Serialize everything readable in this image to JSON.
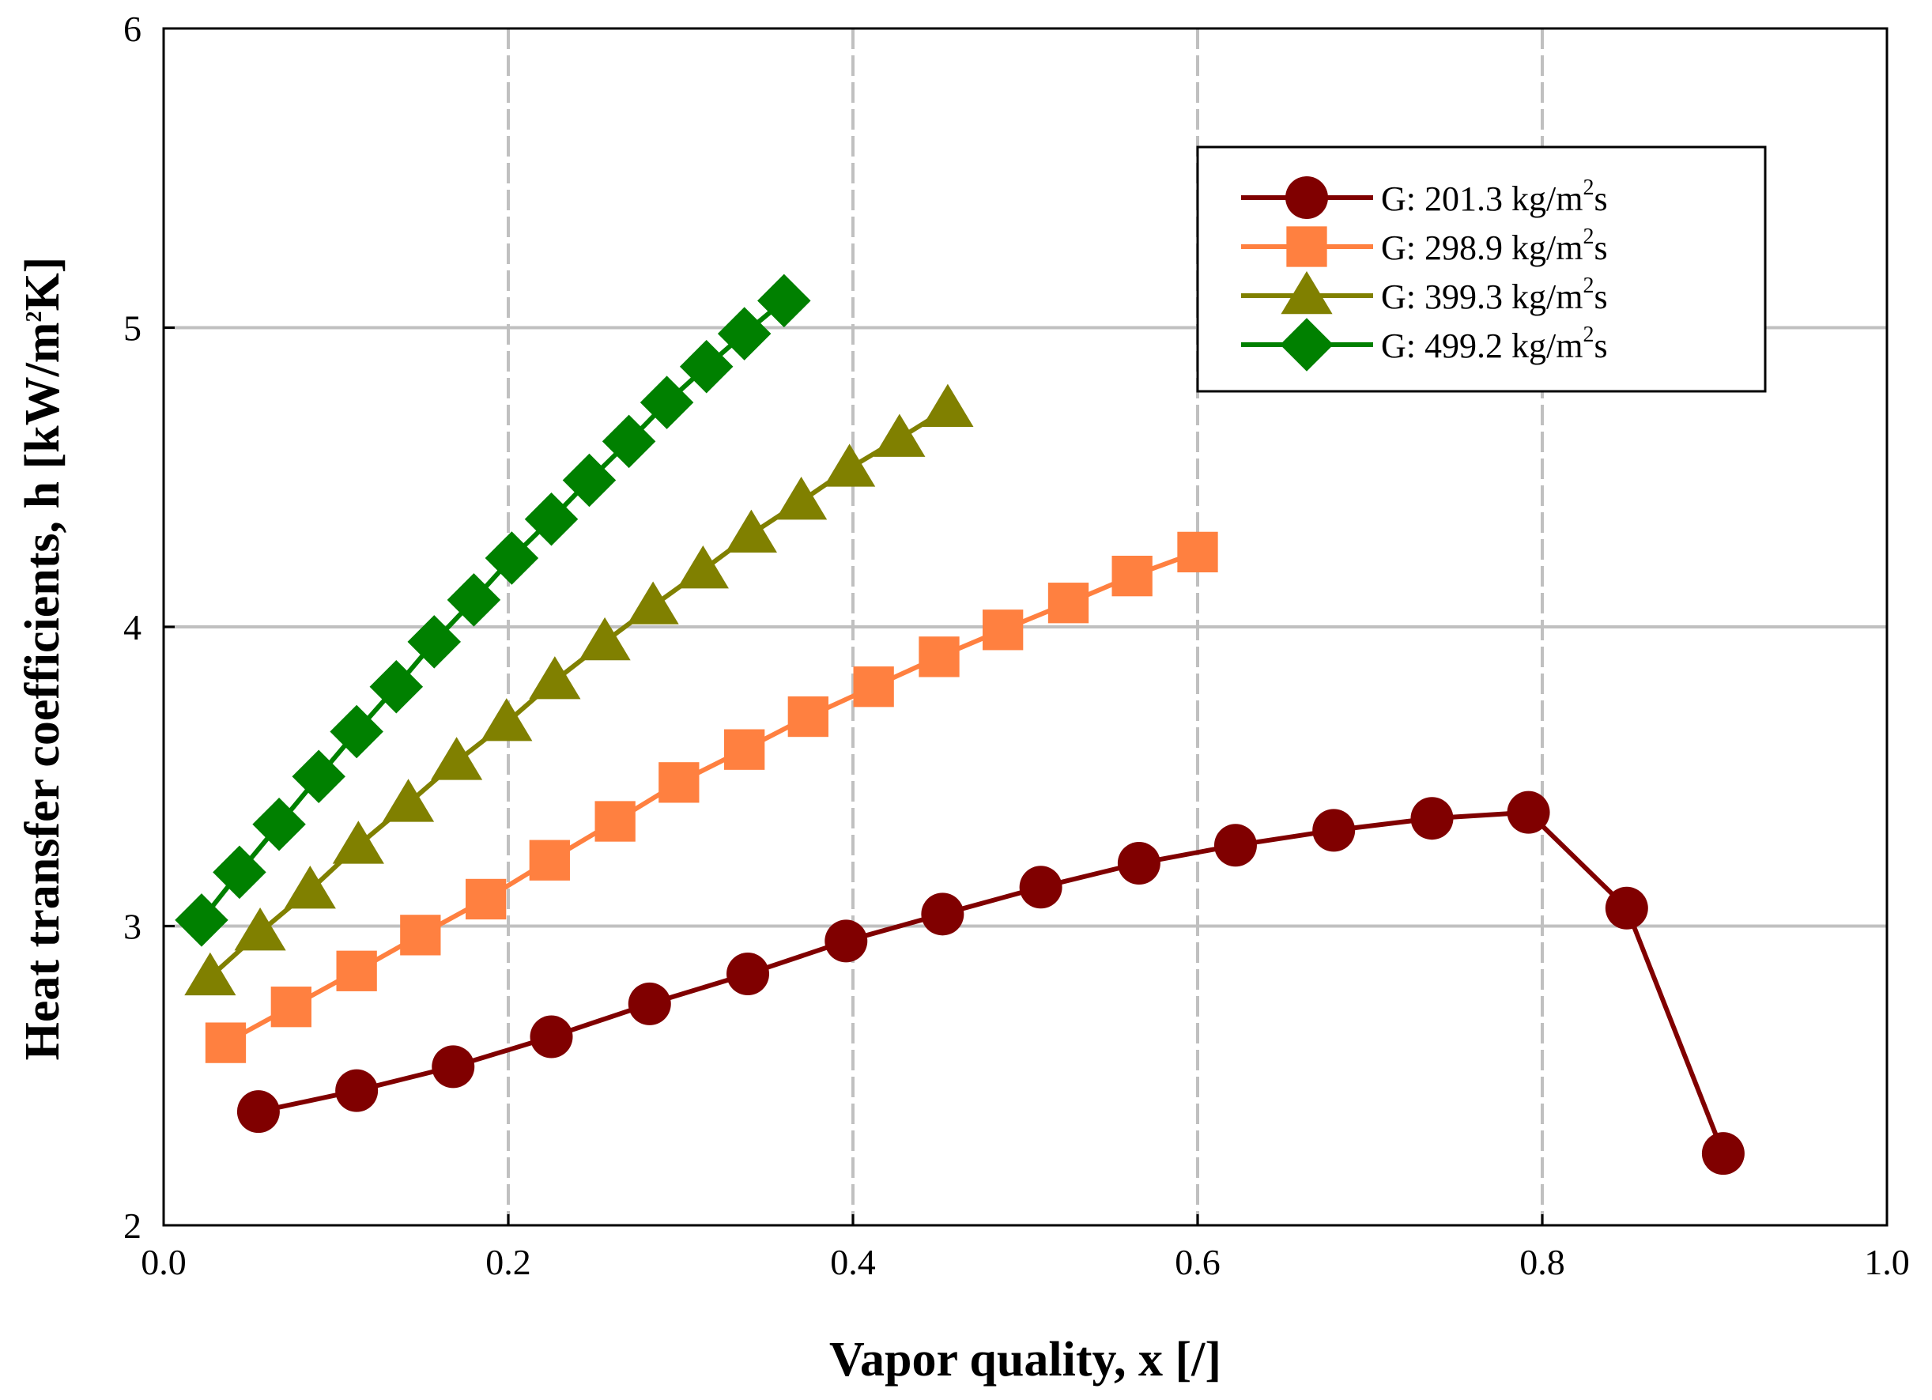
{
  "chart_data": {
    "type": "line",
    "title": "",
    "xlabel": "Vapor quality, x [/]",
    "ylabel": {
      "main": "Heat transfer coefficients, h [kW/m",
      "sup": "2",
      "tail": "K]"
    },
    "xlim": [
      0.0,
      1.0
    ],
    "ylim": [
      2,
      6
    ],
    "x_ticks": [
      "0.0",
      "0.2",
      "0.4",
      "0.6",
      "0.8",
      "1.0"
    ],
    "y_ticks": [
      "2",
      "3",
      "4",
      "5",
      "6"
    ],
    "grid": true,
    "legend_position": "top-right",
    "series": [
      {
        "name": "G: 201.3 kg/m2s",
        "label_main": "G: 201.3 kg/m",
        "label_sup": "2",
        "label_tail": "s",
        "color": "#800000",
        "marker": "circle",
        "x": [
          0.055,
          0.112,
          0.168,
          0.225,
          0.282,
          0.339,
          0.396,
          0.452,
          0.509,
          0.566,
          0.622,
          0.679,
          0.736,
          0.792,
          0.849,
          0.905
        ],
        "y": [
          2.38,
          2.45,
          2.53,
          2.63,
          2.74,
          2.84,
          2.95,
          3.04,
          3.13,
          3.21,
          3.27,
          3.32,
          3.36,
          3.38,
          3.06,
          2.24
        ]
      },
      {
        "name": "G: 298.9 kg/m2s",
        "label_main": "G: 298.9 kg/m",
        "label_sup": "2",
        "label_tail": "s",
        "color": "#FF8040",
        "marker": "square",
        "x": [
          0.036,
          0.074,
          0.112,
          0.149,
          0.187,
          0.224,
          0.262,
          0.299,
          0.337,
          0.374,
          0.412,
          0.45,
          0.487,
          0.525,
          0.562,
          0.6
        ],
        "y": [
          2.61,
          2.73,
          2.85,
          2.97,
          3.09,
          3.22,
          3.35,
          3.48,
          3.59,
          3.7,
          3.8,
          3.9,
          3.99,
          4.08,
          4.17,
          4.25
        ]
      },
      {
        "name": "G: 399.3 kg/m2s",
        "label_main": "G: 399.3 kg/m",
        "label_sup": "2",
        "label_tail": "s",
        "color": "#808000",
        "marker": "triangle",
        "x": [
          0.027,
          0.056,
          0.085,
          0.113,
          0.142,
          0.17,
          0.199,
          0.227,
          0.256,
          0.284,
          0.313,
          0.341,
          0.37,
          0.398,
          0.427,
          0.455
        ],
        "y": [
          2.83,
          2.98,
          3.12,
          3.27,
          3.41,
          3.55,
          3.68,
          3.82,
          3.95,
          4.07,
          4.19,
          4.31,
          4.42,
          4.53,
          4.63,
          4.73
        ]
      },
      {
        "name": "G: 499.2 kg/m2s",
        "label_main": "G: 499.2 kg/m",
        "label_sup": "2",
        "label_tail": "s",
        "color": "#008000",
        "marker": "diamond",
        "x": [
          0.022,
          0.044,
          0.067,
          0.09,
          0.112,
          0.135,
          0.157,
          0.18,
          0.202,
          0.225,
          0.247,
          0.27,
          0.292,
          0.315,
          0.337,
          0.36
        ],
        "y": [
          3.02,
          3.18,
          3.34,
          3.5,
          3.65,
          3.8,
          3.95,
          4.09,
          4.23,
          4.36,
          4.49,
          4.62,
          4.75,
          4.87,
          4.98,
          5.09
        ]
      }
    ]
  }
}
